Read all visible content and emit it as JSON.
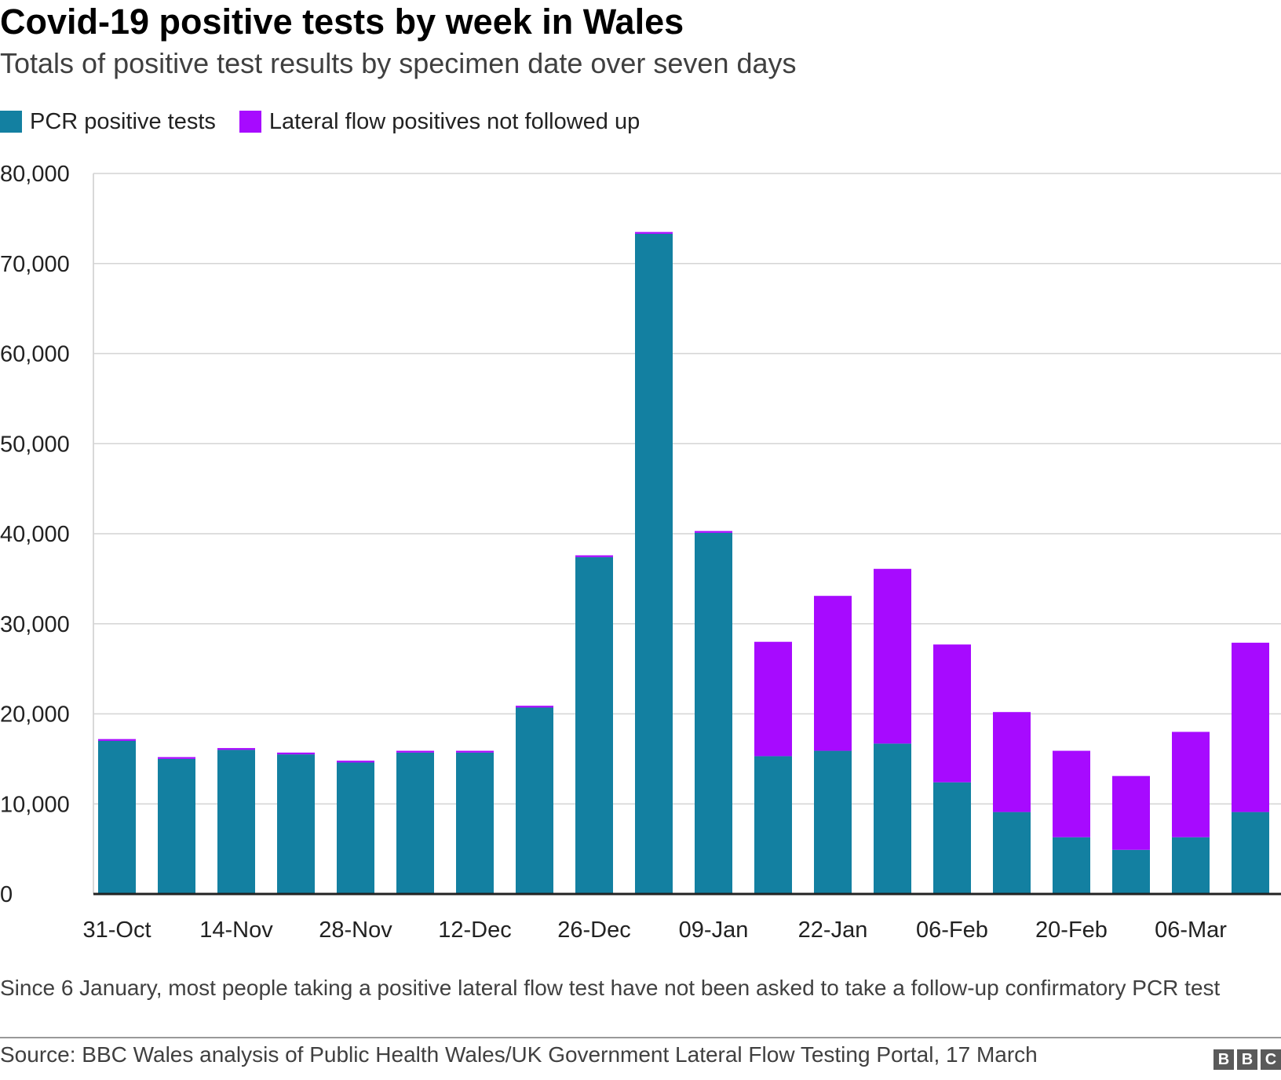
{
  "chart_data": {
    "type": "bar",
    "stacked": true,
    "title": "Covid-19 positive tests by week in Wales",
    "subtitle": "Totals of positive test results by specimen date over seven days",
    "xlabel": "",
    "ylabel": "",
    "ylim": [
      0,
      80000
    ],
    "yticks": [
      0,
      10000,
      20000,
      30000,
      40000,
      50000,
      60000,
      70000,
      80000
    ],
    "ytick_labels": [
      "0",
      "10,000",
      "20,000",
      "30,000",
      "40,000",
      "50,000",
      "60,000",
      "70,000",
      "80,000"
    ],
    "categories": [
      "31-Oct",
      "07-Nov",
      "14-Nov",
      "21-Nov",
      "28-Nov",
      "05-Dec",
      "12-Dec",
      "19-Dec",
      "26-Dec",
      "02-Jan",
      "09-Jan",
      "16-Jan",
      "22-Jan",
      "29-Jan",
      "06-Feb",
      "13-Feb",
      "20-Feb",
      "27-Feb",
      "06-Mar",
      "13-Mar"
    ],
    "tick_labels": [
      "31-Oct",
      "14-Nov",
      "28-Nov",
      "12-Dec",
      "26-Dec",
      "09-Jan",
      "22-Jan",
      "06-Feb",
      "20-Feb",
      "06-Mar"
    ],
    "tick_indices": [
      0,
      2,
      4,
      6,
      8,
      10,
      12,
      14,
      16,
      18
    ],
    "grid": true,
    "series": [
      {
        "name": "PCR positive tests",
        "color": "#1380a1",
        "values": [
          17000,
          15000,
          16000,
          15500,
          14600,
          15700,
          15700,
          20700,
          37400,
          73300,
          40100,
          15300,
          15900,
          16700,
          12400,
          9100,
          6300,
          4900,
          6300,
          9100
        ]
      },
      {
        "name": "Lateral flow positives not followed up",
        "color": "#a70aff",
        "values": [
          200,
          200,
          200,
          200,
          200,
          200,
          200,
          200,
          200,
          200,
          200,
          12700,
          17200,
          19400,
          15300,
          11100,
          9600,
          8200,
          11700,
          18800
        ]
      }
    ]
  },
  "note": "Since 6 January, most people taking a positive lateral flow test have not been asked to take a follow-up confirmatory PCR test",
  "source": "Source: BBC Wales analysis of Public Health Wales/UK Government Lateral Flow Testing Portal, 17 March",
  "logo": {
    "letters": [
      "B",
      "B",
      "C"
    ]
  }
}
